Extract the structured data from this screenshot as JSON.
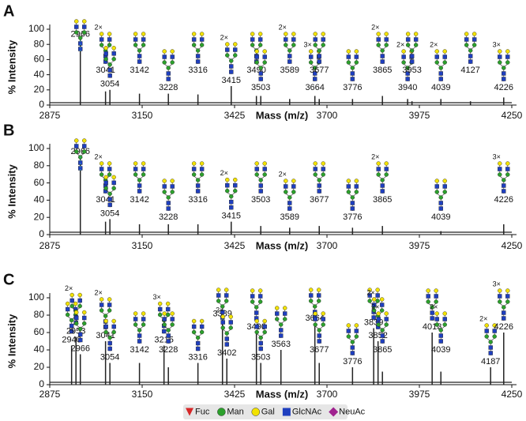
{
  "chart_data": [
    {
      "type": "spectrum",
      "panel": "A",
      "xlabel": "Mass (m/z)",
      "ylabel": "% Intensity",
      "xlim": [
        2875,
        4250
      ],
      "xticks": [
        2875,
        3150,
        3425,
        3700,
        3975,
        4250
      ],
      "ylim": [
        0,
        100
      ],
      "yticks": [
        0,
        20,
        40,
        60,
        80,
        100
      ],
      "color": "#222222",
      "x": [
        2966,
        3041,
        3054,
        3142,
        3228,
        3316,
        3415,
        3490,
        3503,
        3589,
        3664,
        3677,
        3776,
        3865,
        3940,
        3953,
        4039,
        4127,
        4226
      ],
      "values": [
        86,
        18,
        20,
        15,
        15,
        14,
        25,
        12,
        12,
        8,
        12,
        8,
        8,
        12,
        8,
        5,
        8,
        5,
        10
      ],
      "notes": [
        null,
        "2×",
        null,
        null,
        null,
        null,
        "2×",
        null,
        null,
        "2×",
        "3×",
        null,
        null,
        "2×",
        "2×",
        null,
        "2×",
        null,
        "3×"
      ]
    },
    {
      "type": "spectrum",
      "panel": "B",
      "xlabel": "Mass (m/z)",
      "ylabel": "% Intensity",
      "xlim": [
        2875,
        4250
      ],
      "xticks": [
        2875,
        3150,
        3425,
        3700,
        3975,
        4250
      ],
      "ylim": [
        0,
        100
      ],
      "yticks": [
        0,
        20,
        40,
        60,
        80,
        100
      ],
      "color": "#222222",
      "x": [
        2966,
        3041,
        3054,
        3142,
        3228,
        3316,
        3415,
        3503,
        3589,
        3677,
        3776,
        3865,
        4039,
        4226
      ],
      "values": [
        90,
        15,
        18,
        12,
        12,
        12,
        15,
        10,
        8,
        10,
        8,
        10,
        4,
        12
      ],
      "notes": [
        null,
        "2×",
        null,
        null,
        null,
        null,
        "2×",
        null,
        "2×",
        null,
        null,
        "2×",
        null,
        "3×"
      ]
    },
    {
      "type": "spectrum",
      "panel": "C",
      "xlabel": "Mass (m/z)",
      "ylabel": "% Intensity",
      "xlim": [
        2875,
        4250
      ],
      "xticks": [
        2875,
        3150,
        3425,
        3700,
        3975,
        4250
      ],
      "ylim": [
        0,
        100
      ],
      "yticks": [
        0,
        20,
        40,
        60,
        80,
        100
      ],
      "color": "#222222",
      "x": [
        2940,
        2953,
        2966,
        3041,
        3054,
        3142,
        3215,
        3228,
        3316,
        3389,
        3402,
        3490,
        3503,
        3563,
        3664,
        3677,
        3776,
        3839,
        3852,
        3865,
        4013,
        4039,
        4187,
        4226
      ],
      "values": [
        45,
        55,
        35,
        50,
        25,
        25,
        45,
        20,
        25,
        75,
        30,
        60,
        25,
        40,
        70,
        25,
        20,
        65,
        50,
        15,
        60,
        15,
        20,
        60
      ],
      "notes": [
        null,
        "2×",
        null,
        "2×",
        null,
        null,
        "3×",
        null,
        null,
        null,
        "2×",
        null,
        null,
        null,
        null,
        null,
        null,
        null,
        "2×",
        "2×",
        null,
        "2×",
        "2×",
        "3×"
      ]
    }
  ],
  "legend": [
    {
      "name": "Fuc",
      "color": "#d62728",
      "shape": "triangle"
    },
    {
      "name": "Man",
      "color": "#2ca02c",
      "shape": "circle"
    },
    {
      "name": "Gal",
      "color": "#f2e200",
      "shape": "circle"
    },
    {
      "name": "GlcNAc",
      "color": "#1f3fbf",
      "shape": "square"
    },
    {
      "name": "NeuAc",
      "color": "#a0228f",
      "shape": "diamond"
    }
  ]
}
